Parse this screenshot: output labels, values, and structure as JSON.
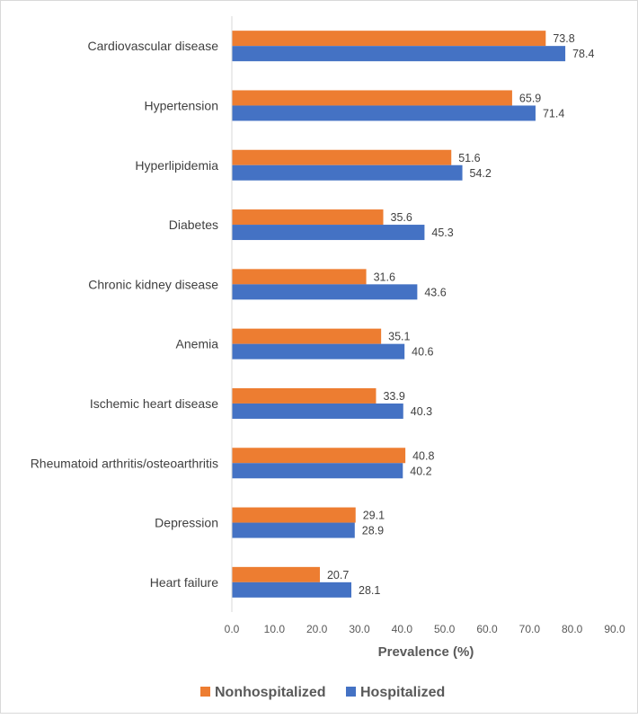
{
  "chart_data": {
    "type": "bar",
    "orientation": "horizontal",
    "title": "",
    "xlabel": "Prevalence (%)",
    "ylabel": "",
    "xlim": [
      0,
      90
    ],
    "x_ticks": [
      "0.0",
      "10.0",
      "20.0",
      "30.0",
      "40.0",
      "50.0",
      "60.0",
      "70.0",
      "80.0",
      "90.0"
    ],
    "grid": false,
    "legend_position": "bottom",
    "categories": [
      "Cardiovascular disease",
      "Hypertension",
      "Hyperlipidemia",
      "Diabetes",
      "Chronic kidney disease",
      "Anemia",
      "Ischemic heart disease",
      "Rheumatoid arthritis/osteoarthritis",
      "Depression",
      "Heart failure"
    ],
    "series": [
      {
        "name": "Nonhospitalized",
        "color": "#ED7D31",
        "values": [
          73.8,
          65.9,
          51.6,
          35.6,
          31.6,
          35.1,
          33.9,
          40.8,
          29.1,
          20.7
        ],
        "labels": [
          "73.8",
          "65.9",
          "51.6",
          "35.6",
          "31.6",
          "35.1",
          "33.9",
          "40.8",
          "29.1",
          "20.7"
        ]
      },
      {
        "name": "Hospitalized",
        "color": "#4472C4",
        "values": [
          78.4,
          71.4,
          54.2,
          45.3,
          43.6,
          40.6,
          40.3,
          40.2,
          28.9,
          28.1
        ],
        "labels": [
          "78.4",
          "71.4",
          "54.2",
          "45.3",
          "43.6",
          "40.6",
          "40.3",
          "40.2",
          "28.9",
          "28.1"
        ]
      }
    ]
  }
}
